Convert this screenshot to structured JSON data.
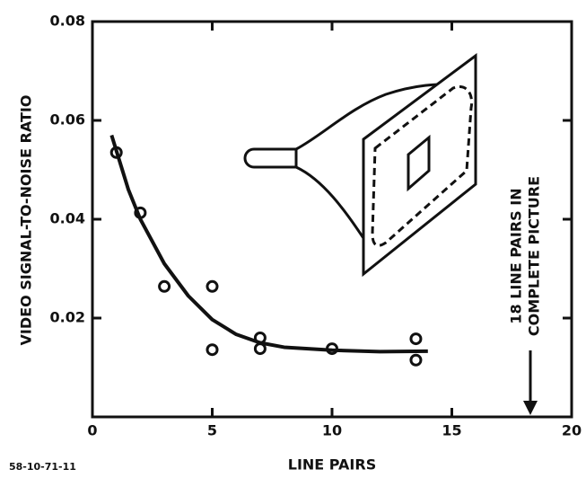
{
  "chart_data": {
    "type": "scatter",
    "x_label": "LINE PAIRS",
    "y_label": "VIDEO SIGNAL-TO-NOISE RATIO",
    "annotation": [
      "18 LINE PAIRS IN",
      "COMPLETE PICTURE"
    ],
    "footnote": "58-10-71-11",
    "x_zero_label": "0",
    "xlim": [
      0,
      20
    ],
    "xticks": [
      5,
      10,
      15,
      20
    ],
    "ylim": [
      0,
      0.08
    ],
    "yticks": [
      0.02,
      0.04,
      0.06,
      0.08
    ],
    "series": [
      {
        "type": "scatter",
        "color": "#111",
        "x": [
          1,
          2,
          3,
          5,
          5,
          7,
          7,
          10,
          13.5,
          13.5
        ],
        "values": [
          0.0535,
          0.0413,
          0.0264,
          0.0264,
          0.0136,
          0.016,
          0.0138,
          0.0138,
          0.0158,
          0.0115
        ]
      },
      {
        "type": "line",
        "color": "#111",
        "x": [
          0.8,
          1.5,
          2,
          3,
          4,
          5,
          6,
          7,
          8,
          10,
          12,
          14
        ],
        "values": [
          0.057,
          0.046,
          0.04,
          0.031,
          0.0245,
          0.0197,
          0.0167,
          0.015,
          0.0141,
          0.0135,
          0.0132,
          0.0133
        ]
      }
    ]
  }
}
